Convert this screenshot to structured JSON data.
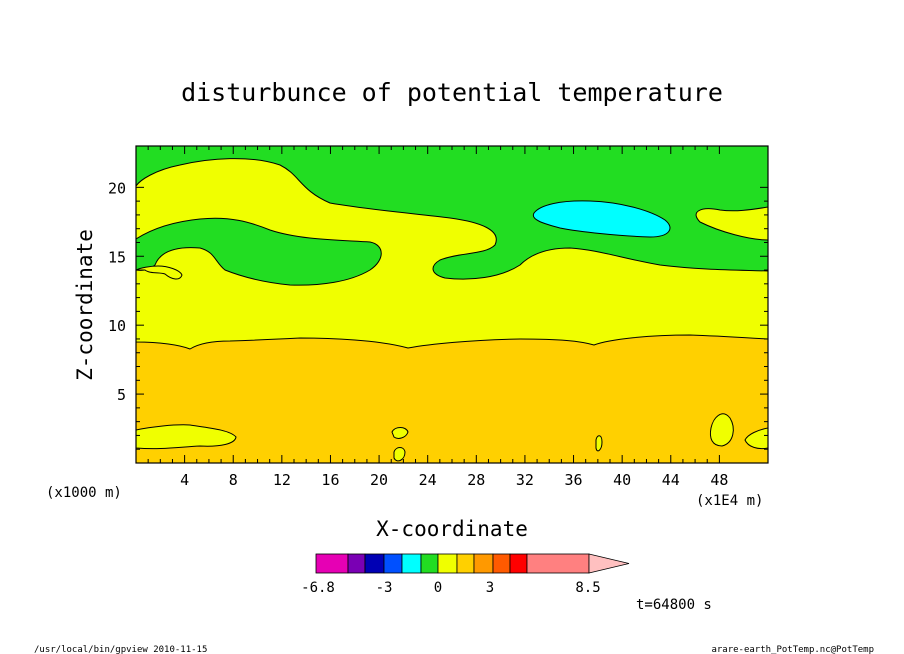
{
  "chart_data": {
    "type": "heatmap",
    "title": "disturbunce of potential temperature",
    "xlabel": "X-coordinate",
    "ylabel": "Z-coordinate",
    "x_unit_label": "(x1E4 m)",
    "y_unit_label": "(x1000 m)",
    "xlim": [
      0,
      52
    ],
    "ylim": [
      0,
      23
    ],
    "x_ticks": [
      "4",
      "8",
      "12",
      "16",
      "20",
      "24",
      "28",
      "32",
      "36",
      "40",
      "44",
      "48"
    ],
    "x_tick_values": [
      4,
      8,
      12,
      16,
      20,
      24,
      28,
      32,
      36,
      40,
      44,
      48
    ],
    "y_ticks": [
      "5",
      "10",
      "15",
      "20"
    ],
    "y_tick_values": [
      5,
      10,
      15,
      20
    ],
    "time_label": "t=64800 s",
    "colorbar": {
      "labels": [
        "-6.8",
        "-3",
        "0",
        "3",
        "8.5"
      ],
      "colors": [
        "#e600b4",
        "#7a00b4",
        "#0000b4",
        "#0050ff",
        "#00ffff",
        "#22dd22",
        "#f0ff00",
        "#ffd000",
        "#ff9900",
        "#ff5a00",
        "#ff0000",
        "#ff8080",
        "#ffc0c0"
      ]
    },
    "levels": [
      {
        "name": "positive-low-band",
        "color": "#ffd000",
        "range": "z 0-9"
      },
      {
        "name": "positive-mid-band",
        "color": "#f0ff00",
        "range": "z 9-14 and upper pockets"
      },
      {
        "name": "near-zero",
        "color": "#22dd22",
        "range": "upper layer"
      },
      {
        "name": "negative-pocket",
        "color": "#00ffff",
        "range": "x 32-43, z 16.5-18.5"
      }
    ]
  },
  "footer": {
    "left": "/usr/local/bin/gpview  2010-11-15",
    "right": "arare-earth_PotTemp.nc@PotTemp"
  }
}
